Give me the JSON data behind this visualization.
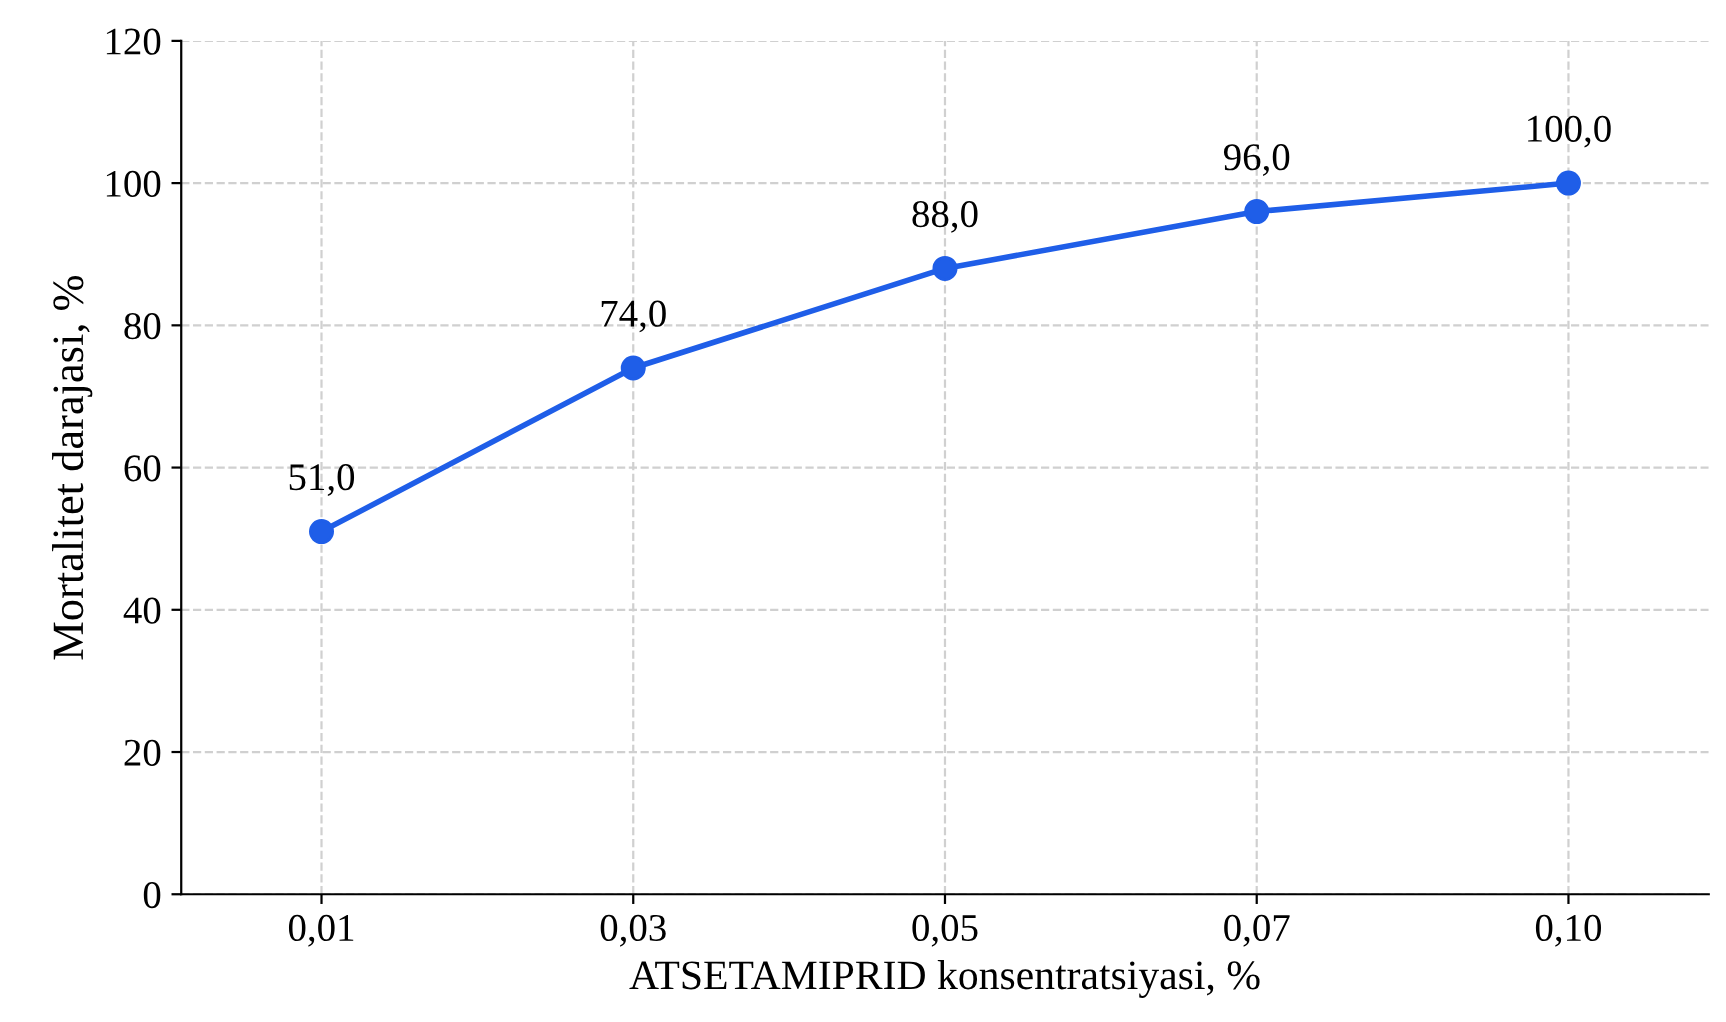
{
  "chart_data": {
    "type": "line",
    "xlabel": "ATSETAMIPRID konsentratsiyasi, %",
    "ylabel": "Mortalitet darajasi, %",
    "categories": [
      "0,01",
      "0,03",
      "0,05",
      "0,07",
      "0,10"
    ],
    "series": [
      {
        "color": "#1f5ee8",
        "values": [
          51,
          74,
          88,
          96,
          100
        ],
        "value_labels": [
          "51,0",
          "74,0",
          "88,0",
          "96,0",
          "100,0"
        ]
      }
    ],
    "ylim": [
      0,
      120
    ],
    "yticks": [
      0,
      20,
      40,
      60,
      80,
      100,
      120
    ],
    "grid": true,
    "marker": "circle",
    "line_style": "solid"
  }
}
